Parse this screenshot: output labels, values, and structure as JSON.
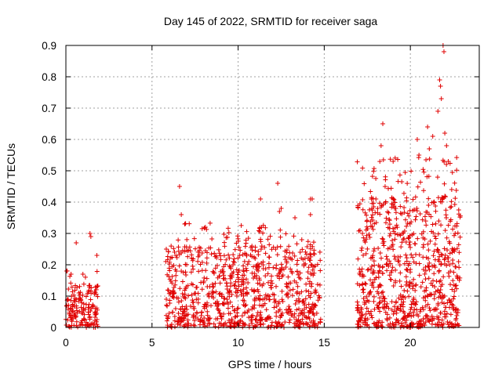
{
  "chart_data": {
    "type": "scatter",
    "title": "Day 145 of 2022, SRMTID for receiver saga",
    "xlabel": "GPS time / hours",
    "ylabel": "SRMTID / TECUs",
    "xlim": [
      0,
      24
    ],
    "ylim": [
      0,
      0.9
    ],
    "xticks": [
      0,
      5,
      10,
      15,
      20
    ],
    "yticks": [
      0,
      0.1,
      0.2,
      0.3,
      0.4,
      0.5,
      0.6,
      0.7,
      0.8,
      0.9
    ],
    "grid": true,
    "marker": "+",
    "color": "#e00000",
    "series": [
      {
        "name": "SRMTID",
        "segments": [
          {
            "x_start": 0.0,
            "x_end": 1.9,
            "y_min": 0.0,
            "y_max": 0.14,
            "density": 160
          },
          {
            "x_start": 5.8,
            "x_end": 14.8,
            "y_min": 0.0,
            "y_max": 0.26,
            "density": 900
          },
          {
            "x_start": 16.9,
            "x_end": 22.9,
            "y_min": 0.0,
            "y_max": 0.42,
            "density": 800
          }
        ],
        "notable_points": [
          {
            "x": 0.05,
            "y": 0.18
          },
          {
            "x": 0.3,
            "y": 0.17
          },
          {
            "x": 0.6,
            "y": 0.27
          },
          {
            "x": 1.4,
            "y": 0.3
          },
          {
            "x": 1.45,
            "y": 0.29
          },
          {
            "x": 1.8,
            "y": 0.23
          },
          {
            "x": 6.6,
            "y": 0.45
          },
          {
            "x": 6.7,
            "y": 0.36
          },
          {
            "x": 6.9,
            "y": 0.33
          },
          {
            "x": 8.1,
            "y": 0.32
          },
          {
            "x": 11.3,
            "y": 0.41
          },
          {
            "x": 12.3,
            "y": 0.46
          },
          {
            "x": 12.4,
            "y": 0.37
          },
          {
            "x": 12.5,
            "y": 0.38
          },
          {
            "x": 13.3,
            "y": 0.35
          },
          {
            "x": 14.2,
            "y": 0.41
          },
          {
            "x": 14.3,
            "y": 0.41
          },
          {
            "x": 14.2,
            "y": 0.36
          },
          {
            "x": 18.0,
            "y": 0.41
          },
          {
            "x": 18.3,
            "y": 0.58
          },
          {
            "x": 18.4,
            "y": 0.65
          },
          {
            "x": 19.0,
            "y": 0.53
          },
          {
            "x": 20.4,
            "y": 0.6
          },
          {
            "x": 20.5,
            "y": 0.55
          },
          {
            "x": 21.0,
            "y": 0.64
          },
          {
            "x": 21.1,
            "y": 0.57
          },
          {
            "x": 21.3,
            "y": 0.61
          },
          {
            "x": 21.7,
            "y": 0.79
          },
          {
            "x": 21.75,
            "y": 0.77
          },
          {
            "x": 21.8,
            "y": 0.73
          },
          {
            "x": 21.9,
            "y": 0.9
          },
          {
            "x": 21.95,
            "y": 0.88
          },
          {
            "x": 21.6,
            "y": 0.69
          },
          {
            "x": 22.0,
            "y": 0.62
          },
          {
            "x": 22.1,
            "y": 0.58
          },
          {
            "x": 22.2,
            "y": 0.53
          },
          {
            "x": 22.4,
            "y": 0.44
          },
          {
            "x": 22.6,
            "y": 0.3
          },
          {
            "x": 22.8,
            "y": 0.21
          }
        ]
      }
    ]
  }
}
